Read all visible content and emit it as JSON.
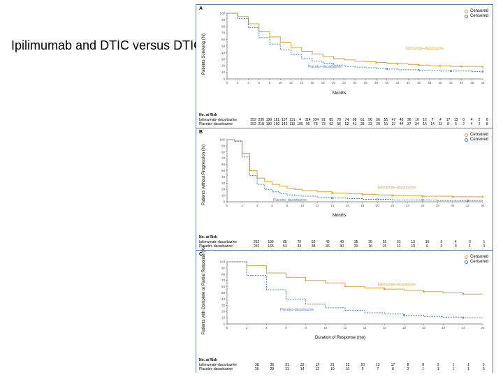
{
  "title": "Ipilimumab and DTIC versus DTIC (+ placebo)",
  "colors": {
    "ipi": "#d4a537",
    "placebo": "#4a7fb8",
    "axis": "#666666",
    "text": "#000000"
  },
  "legend": {
    "item1": "Censored",
    "item2": "Censored"
  },
  "panels": {
    "A": {
      "label": "A",
      "ylabel": "Patients Surviving (%)",
      "xlabel": "Months",
      "ylim": [
        0,
        100
      ],
      "ytick_step": 10,
      "xlim": [
        0,
        48
      ],
      "xtick_step": 2,
      "curve1_label": "Ipilimumab–dacarbazine",
      "curve2_label": "Placebo–dacarbazine",
      "ipi_curve": [
        [
          0,
          100
        ],
        [
          2,
          95
        ],
        [
          4,
          84
        ],
        [
          6,
          72
        ],
        [
          8,
          64
        ],
        [
          10,
          56
        ],
        [
          12,
          48
        ],
        [
          14,
          42
        ],
        [
          16,
          38
        ],
        [
          18,
          34
        ],
        [
          20,
          31
        ],
        [
          22,
          29
        ],
        [
          24,
          27
        ],
        [
          26,
          26
        ],
        [
          28,
          25
        ],
        [
          30,
          24
        ],
        [
          32,
          23
        ],
        [
          34,
          22
        ],
        [
          36,
          21
        ],
        [
          38,
          20
        ],
        [
          40,
          20
        ],
        [
          42,
          19
        ],
        [
          44,
          19
        ],
        [
          46,
          19
        ],
        [
          48,
          18
        ]
      ],
      "placebo_curve": [
        [
          0,
          100
        ],
        [
          2,
          92
        ],
        [
          4,
          78
        ],
        [
          6,
          63
        ],
        [
          8,
          53
        ],
        [
          10,
          44
        ],
        [
          12,
          37
        ],
        [
          14,
          31
        ],
        [
          16,
          27
        ],
        [
          18,
          24
        ],
        [
          20,
          21
        ],
        [
          22,
          19
        ],
        [
          24,
          18
        ],
        [
          26,
          17
        ],
        [
          28,
          16
        ],
        [
          30,
          15
        ],
        [
          32,
          14
        ],
        [
          34,
          14
        ],
        [
          36,
          13
        ],
        [
          38,
          13
        ],
        [
          40,
          12
        ],
        [
          42,
          12
        ],
        [
          44,
          12
        ],
        [
          46,
          11
        ],
        [
          48,
          11
        ]
      ],
      "risk": {
        "title": "No. at Risk",
        "rows": [
          {
            "label": "Ipilimumab–dacarbazine",
            "vals": [
              "252",
              "230",
              "199",
              "181",
              "157",
              "131",
              "4",
              "114",
              "104",
              "91",
              "85",
              "79",
              "74",
              "68",
              "61",
              "56",
              "56",
              "56",
              "47",
              "40",
              "36",
              "16",
              "12",
              "7",
              "4",
              "17",
              "13",
              "0",
              "4",
              "2",
              "8"
            ]
          },
          {
            "label": "Placebo–dacarbazine",
            "vals": [
              "252",
              "218",
              "190",
              "160",
              "142",
              "110",
              "100",
              "90",
              "78",
              "73",
              "62",
              "56",
              "52",
              "41",
              "28",
              "23",
              "20",
              "15",
              "37",
              "44",
              "37",
              "34",
              "16",
              "14",
              "11",
              "8",
              "5",
              "2",
              "4",
              "2",
              "8"
            ]
          }
        ]
      }
    },
    "B": {
      "label": "B",
      "ylabel": "Patients without Progression (%)",
      "xlabel": "Months",
      "ylim": [
        0,
        100
      ],
      "ytick_step": 10,
      "xlim": [
        0,
        34
      ],
      "xtick_step": 2,
      "curve1_label": "Ipilimumab–dacarbazine",
      "curve2_label": "Placebo–dacarbazine",
      "ipi_curve": [
        [
          0,
          100
        ],
        [
          1,
          98
        ],
        [
          2,
          78
        ],
        [
          3,
          50
        ],
        [
          4,
          38
        ],
        [
          5,
          32
        ],
        [
          6,
          28
        ],
        [
          7,
          25
        ],
        [
          8,
          22
        ],
        [
          9,
          20
        ],
        [
          10,
          18
        ],
        [
          12,
          16
        ],
        [
          14,
          14
        ],
        [
          16,
          13
        ],
        [
          18,
          12
        ],
        [
          20,
          11
        ],
        [
          22,
          10
        ],
        [
          24,
          10
        ],
        [
          26,
          9
        ],
        [
          28,
          9
        ],
        [
          30,
          8
        ],
        [
          32,
          8
        ],
        [
          34,
          8
        ]
      ],
      "placebo_curve": [
        [
          0,
          100
        ],
        [
          1,
          97
        ],
        [
          2,
          72
        ],
        [
          3,
          42
        ],
        [
          4,
          28
        ],
        [
          5,
          20
        ],
        [
          6,
          16
        ],
        [
          7,
          13
        ],
        [
          8,
          11
        ],
        [
          9,
          10
        ],
        [
          10,
          9
        ],
        [
          12,
          7
        ],
        [
          14,
          6
        ],
        [
          16,
          5
        ],
        [
          18,
          4
        ],
        [
          20,
          4
        ],
        [
          22,
          3
        ],
        [
          24,
          3
        ],
        [
          26,
          3
        ],
        [
          28,
          2
        ],
        [
          30,
          2
        ],
        [
          32,
          2
        ],
        [
          34,
          2
        ]
      ],
      "risk": {
        "title": "No. at Risk",
        "rows": [
          {
            "label": "Ipilimumab–dacarbazine",
            "vals": [
              "252",
              "199",
              "85",
              "70",
              "52",
              "42",
              "40",
              "35",
              "30",
              "25",
              "21",
              "13",
              "10",
              "6",
              "4",
              "3",
              "1"
            ]
          },
          {
            "label": "Placebo–dacarbazine",
            "vals": [
              "252",
              "165",
              "53",
              "33",
              "38",
              "36",
              "30",
              "20",
              "16",
              "15",
              "11",
              "10",
              "6",
              "3",
              "3",
              "1",
              "0"
            ]
          }
        ]
      }
    },
    "C": {
      "label": "C",
      "ylabel": "Patients with Complete or Partial Response (%)",
      "xlabel": "Duration of Response (mo)",
      "ylim": [
        0,
        100
      ],
      "ytick_step": 10,
      "xlim": [
        0,
        26
      ],
      "xtick_step": 2,
      "curve1_label": "Ipilimumab–dacarbazine",
      "curve2_label": "Placebo–dacarbazine",
      "ipi_curve": [
        [
          0,
          100
        ],
        [
          2,
          94
        ],
        [
          4,
          82
        ],
        [
          6,
          75
        ],
        [
          8,
          70
        ],
        [
          10,
          66
        ],
        [
          12,
          60
        ],
        [
          14,
          58
        ],
        [
          16,
          56
        ],
        [
          18,
          54
        ],
        [
          20,
          52
        ],
        [
          22,
          50
        ],
        [
          24,
          48
        ],
        [
          26,
          48
        ]
      ],
      "placebo_curve": [
        [
          0,
          100
        ],
        [
          2,
          78
        ],
        [
          4,
          55
        ],
        [
          6,
          40
        ],
        [
          8,
          32
        ],
        [
          10,
          26
        ],
        [
          12,
          22
        ],
        [
          14,
          18
        ],
        [
          16,
          16
        ],
        [
          18,
          14
        ],
        [
          20,
          12
        ],
        [
          22,
          11
        ],
        [
          24,
          10
        ],
        [
          26,
          10
        ]
      ],
      "risk": {
        "title": "No. at Risk",
        "rows": [
          {
            "label": "Ipilimumab–dacarbazine",
            "vals": [
              "38",
              "36",
              "31",
              "33",
              "12",
              "21",
              "22",
              "20",
              "13",
              "17",
              "8",
              "8",
              "2",
              "1",
              "1",
              "0"
            ]
          },
          {
            "label": "Placebo–dacarbazine",
            "vals": [
              "26",
              "20",
              "21",
              "14",
              "12",
              "10",
              "10",
              "9",
              "7",
              "8",
              "3",
              "1",
              "1",
              "1",
              "1",
              "0"
            ]
          }
        ]
      }
    }
  }
}
